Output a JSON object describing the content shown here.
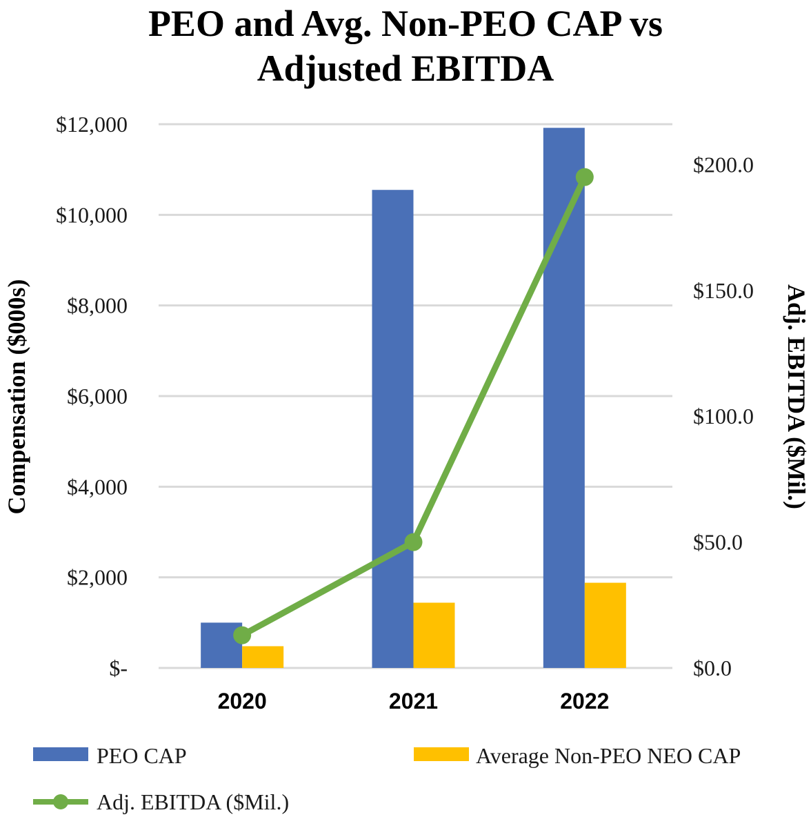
{
  "colors": {
    "peo": "#4a70b7",
    "non_peo": "#ffc000",
    "ebitda": "#70ad47",
    "grid": "#d9d9d9"
  },
  "chart_data": {
    "type": "bar",
    "title_lines": [
      "PEO and Avg. Non-PEO CAP vs",
      "Adjusted EBITDA"
    ],
    "categories": [
      "2020",
      "2021",
      "2022"
    ],
    "series": [
      {
        "name": "PEO CAP",
        "axis": "left",
        "kind": "bar",
        "values": [
          1000,
          10550,
          11920
        ]
      },
      {
        "name": "Average Non-PEO NEO CAP",
        "axis": "left",
        "kind": "bar",
        "values": [
          480,
          1440,
          1880
        ]
      },
      {
        "name": "Adj. EBITDA ($Mil.)",
        "axis": "right",
        "kind": "line",
        "values": [
          13.0,
          50.0,
          195.0
        ]
      }
    ],
    "left_axis": {
      "title": "Compensation ($000s)",
      "ylim": [
        0,
        12000
      ],
      "ticks": [
        0,
        2000,
        4000,
        6000,
        8000,
        10000,
        12000
      ],
      "tick_labels": [
        "$-",
        "$2,000",
        "$4,000",
        "$6,000",
        "$8,000",
        "$10,000",
        "$12,000"
      ]
    },
    "right_axis": {
      "title": "Adj. EBITDA ($Mil.)",
      "ylim": [
        0,
        216
      ],
      "ticks": [
        0,
        50,
        100,
        150,
        200
      ],
      "tick_labels": [
        "$0.0",
        "$50.0",
        "$100.0",
        "$150.0",
        "$200.0"
      ]
    },
    "grid": true,
    "legend_position": "bottom",
    "legend": [
      "PEO CAP",
      "Average Non-PEO NEO CAP",
      "Adj. EBITDA ($Mil.)"
    ]
  }
}
